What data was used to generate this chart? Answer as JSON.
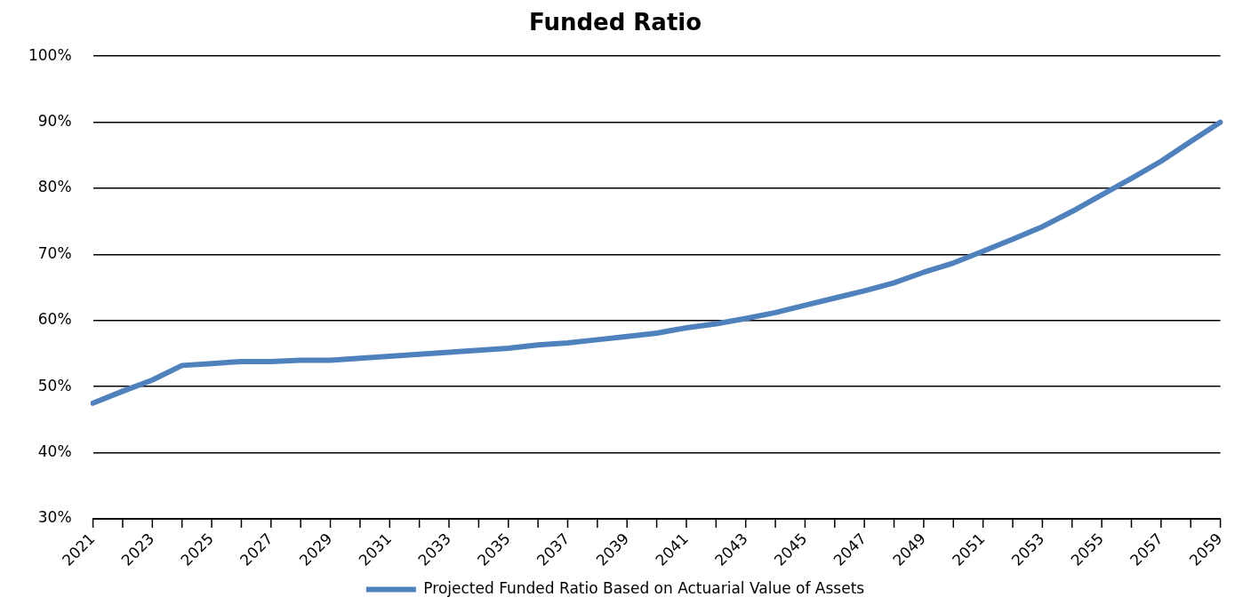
{
  "chart_data": {
    "type": "line",
    "title": "Funded Ratio",
    "categories": [
      "2021",
      null,
      "2023",
      null,
      "2025",
      null,
      "2027",
      null,
      "2029",
      null,
      "2031",
      null,
      "2033",
      null,
      "2035",
      null,
      "2037",
      null,
      "2039",
      null,
      "2041",
      null,
      "2043",
      null,
      "2045",
      null,
      "2047",
      null,
      "2049",
      null,
      "2051",
      null,
      "2053",
      null,
      "2055",
      null,
      "2057",
      null,
      "2059"
    ],
    "series": [
      {
        "name": "Projected Funded Ratio Based on Actuarial Value of Assets",
        "color": "#4f81bd",
        "values": [
          47.5,
          49.3,
          51.0,
          53.2,
          53.5,
          53.8,
          53.8,
          54.0,
          54.0,
          54.3,
          54.6,
          54.9,
          55.2,
          55.5,
          55.8,
          56.3,
          56.6,
          57.1,
          57.6,
          58.1,
          58.9,
          59.5,
          60.3,
          61.2,
          62.3,
          63.4,
          64.5,
          65.7,
          67.3,
          68.7,
          70.5,
          72.3,
          74.2,
          76.5,
          79.0,
          81.5,
          84.1,
          87.1,
          90.0
        ]
      }
    ],
    "ylim": [
      30,
      100
    ],
    "yticks": [
      {
        "value": 30,
        "label": "30%"
      },
      {
        "value": 40,
        "label": "40%"
      },
      {
        "value": 50,
        "label": "50%"
      },
      {
        "value": 60,
        "label": "60%"
      },
      {
        "value": 70,
        "label": "70%"
      },
      {
        "value": 80,
        "label": "80%"
      },
      {
        "value": 90,
        "label": "90%"
      },
      {
        "value": 100,
        "label": "100%"
      }
    ],
    "grid": "y",
    "legend": "bottom",
    "marker": "none",
    "line_style": "solid"
  }
}
